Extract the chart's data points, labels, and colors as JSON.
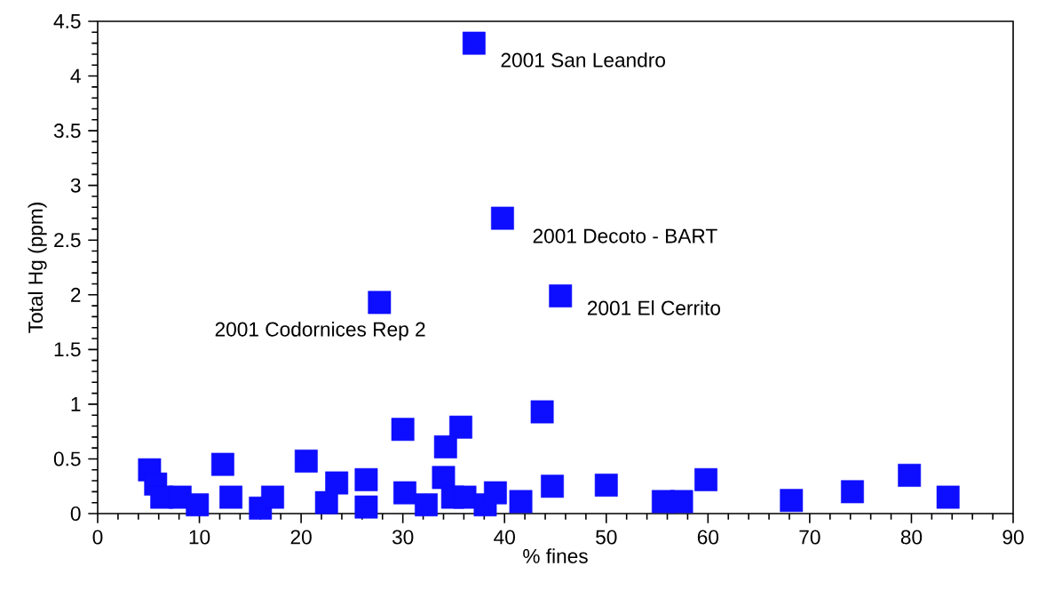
{
  "chart_data": {
    "type": "scatter",
    "xlabel": "% fines",
    "ylabel": "Total Hg (ppm)",
    "series": [
      {
        "color": "#0d0dff",
        "x": [
          37.0,
          39.8,
          45.5,
          27.7,
          43.7,
          30.0,
          35.7,
          34.2,
          5.1,
          5.7,
          6.3,
          8.1,
          9.8,
          12.3,
          13.1,
          16.0,
          17.2,
          20.5,
          23.5,
          22.5,
          26.4,
          26.4,
          30.2,
          32.3,
          34.0,
          34.9,
          36.1,
          38.1,
          39.1,
          41.6,
          44.7,
          50.0,
          55.6,
          57.4,
          59.8,
          68.2,
          74.2,
          79.8,
          83.6
        ],
        "values": [
          4.3,
          2.7,
          1.99,
          1.93,
          0.93,
          0.77,
          0.79,
          0.61,
          0.4,
          0.27,
          0.15,
          0.15,
          0.08,
          0.45,
          0.15,
          0.05,
          0.15,
          0.48,
          0.28,
          0.1,
          0.31,
          0.06,
          0.19,
          0.08,
          0.33,
          0.15,
          0.15,
          0.08,
          0.19,
          0.11,
          0.25,
          0.26,
          0.11,
          0.11,
          0.31,
          0.12,
          0.2,
          0.35,
          0.15
        ]
      }
    ],
    "marker": "square",
    "xlim": [
      0,
      90
    ],
    "xticks": [
      0,
      10,
      20,
      30,
      40,
      50,
      60,
      70,
      80,
      90
    ],
    "ylim": [
      0,
      4.5
    ],
    "yticks": [
      0,
      {
        "value": 0.5,
        "label": "0.5"
      },
      1,
      {
        "value": 1.5,
        "label": "1.5"
      },
      2,
      {
        "value": 2.5,
        "label": "2.5"
      },
      3,
      {
        "value": 3.5,
        "label": "3.5"
      },
      4,
      {
        "value": 4.5,
        "label": "4.5"
      }
    ],
    "annotations": [
      {
        "text": "2001 San Leandro",
        "x": 37.0,
        "y": 4.3
      },
      {
        "text": "2001 Decoto - BART",
        "x": 39.8,
        "y": 2.7
      },
      {
        "text": "2001 El Cerrito",
        "x": 45.5,
        "y": 1.99
      },
      {
        "text": "2001 Codornices Rep 2",
        "x": 27.7,
        "y": 1.93
      }
    ]
  }
}
